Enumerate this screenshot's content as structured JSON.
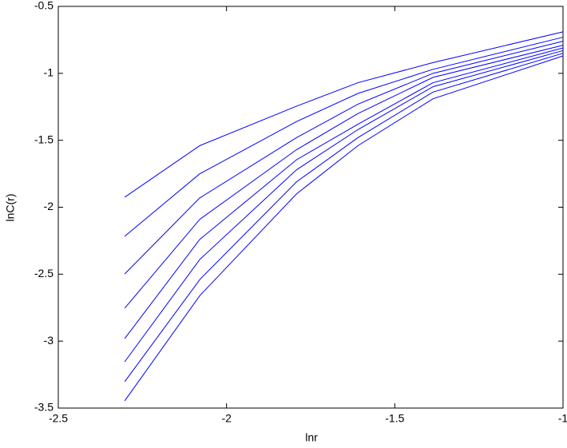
{
  "chart_data": {
    "type": "line",
    "x_label": "lnr",
    "y_label": "lnC(r)",
    "x": [
      -2.3026,
      -2.0794,
      -1.7918,
      -1.6094,
      -1.3863,
      -1.0
    ],
    "series": [
      {
        "color": "#0000ff",
        "values": [
          -1.925,
          -1.54,
          -1.245,
          -1.07,
          -0.92,
          -0.69
        ]
      },
      {
        "color": "#0000ff",
        "values": [
          -2.217,
          -1.75,
          -1.36,
          -1.15,
          -0.97,
          -0.73
        ]
      },
      {
        "color": "#0000ff",
        "values": [
          -2.498,
          -1.93,
          -1.48,
          -1.23,
          -1.0,
          -0.76
        ]
      },
      {
        "color": "#0000ff",
        "values": [
          -2.754,
          -2.09,
          -1.57,
          -1.3,
          -1.03,
          -0.79
        ]
      },
      {
        "color": "#0000ff",
        "values": [
          -2.981,
          -2.24,
          -1.645,
          -1.38,
          -1.07,
          -0.81
        ]
      },
      {
        "color": "#0000ff",
        "values": [
          -3.154,
          -2.39,
          -1.72,
          -1.42,
          -1.1,
          -0.83
        ]
      },
      {
        "color": "#0000ff",
        "values": [
          -3.303,
          -2.54,
          -1.81,
          -1.48,
          -1.14,
          -0.85
        ]
      },
      {
        "color": "#0000ff",
        "values": [
          -3.446,
          -2.66,
          -1.9,
          -1.54,
          -1.19,
          -0.87
        ]
      }
    ],
    "xlim": [
      -2.5,
      -1
    ],
    "xticks": [
      -2.5,
      -2,
      -1.5,
      -1
    ],
    "ylim": [
      -3.5,
      -0.5
    ],
    "yticks": [
      -3.5,
      -3,
      -2.5,
      -2,
      -1.5,
      -1,
      -0.5
    ],
    "grid": false
  }
}
